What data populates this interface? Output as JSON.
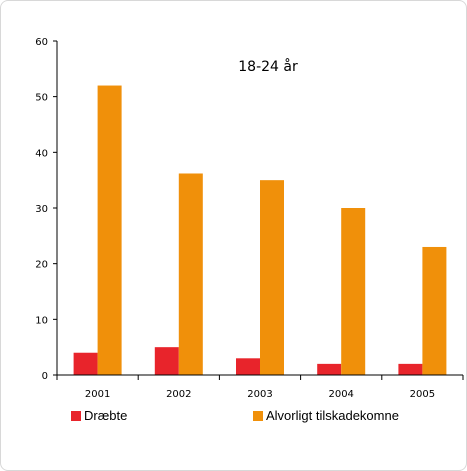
{
  "chart_data": {
    "type": "bar",
    "title": "18-24 år",
    "categories": [
      "2001",
      "2002",
      "2003",
      "2004",
      "2005"
    ],
    "series": [
      {
        "name": "Dræbte",
        "color": "#e8242b",
        "values": [
          4,
          5,
          3,
          2,
          2
        ]
      },
      {
        "name": "Alvorligt tilskadekomne",
        "color": "#f0900a",
        "values": [
          52,
          36.2,
          35,
          30,
          23
        ]
      }
    ],
    "ylim": [
      0,
      60
    ],
    "yticks": [
      0,
      10,
      20,
      30,
      40,
      50,
      60
    ],
    "xlabel": "",
    "ylabel": "",
    "grid": false,
    "legend_position": "bottom"
  }
}
